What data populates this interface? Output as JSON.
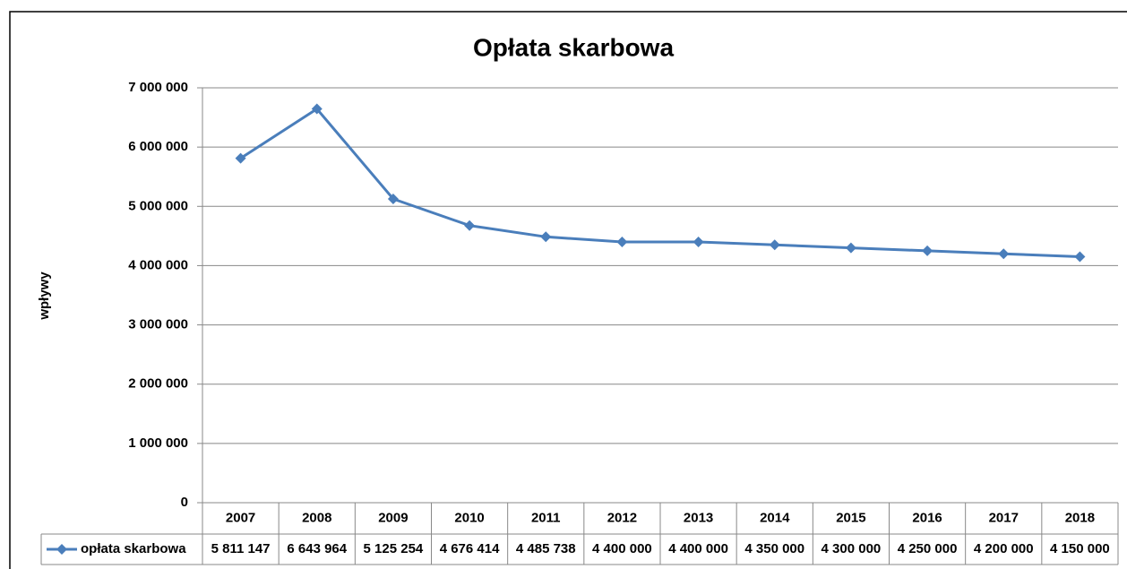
{
  "chart_data": {
    "type": "line",
    "title": "Opłata skarbowa",
    "y_label": "wpływy",
    "categories": [
      "2007",
      "2008",
      "2009",
      "2010",
      "2011",
      "2012",
      "2013",
      "2014",
      "2015",
      "2016",
      "2017",
      "2018"
    ],
    "series": [
      {
        "name": "opłata skarbowa",
        "color": "#4a7ebb",
        "values": [
          5811147,
          6643964,
          5125254,
          4676414,
          4485738,
          4400000,
          4400000,
          4350000,
          4300000,
          4250000,
          4200000,
          4150000
        ],
        "value_labels": [
          "5 811 147",
          "6 643 964",
          "5 125 254",
          "4 676 414",
          "4 485 738",
          "4 400 000",
          "4 400 000",
          "4 350 000",
          "4 300 000",
          "4 250 000",
          "4 200 000",
          "4 150 000"
        ]
      }
    ],
    "ylim": [
      0,
      7000000
    ],
    "yticks": [
      0,
      {
        "value": 1000000,
        "label": "1 000 000"
      },
      {
        "value": 2000000,
        "label": "2 000 000"
      },
      {
        "value": 3000000,
        "label": "3 000 000"
      },
      {
        "value": 4000000,
        "label": "4 000 000"
      },
      {
        "value": 5000000,
        "label": "5 000 000"
      },
      {
        "value": 6000000,
        "label": "6 000 000"
      },
      {
        "value": 7000000,
        "label": "7 000 000"
      }
    ],
    "grid": true
  }
}
